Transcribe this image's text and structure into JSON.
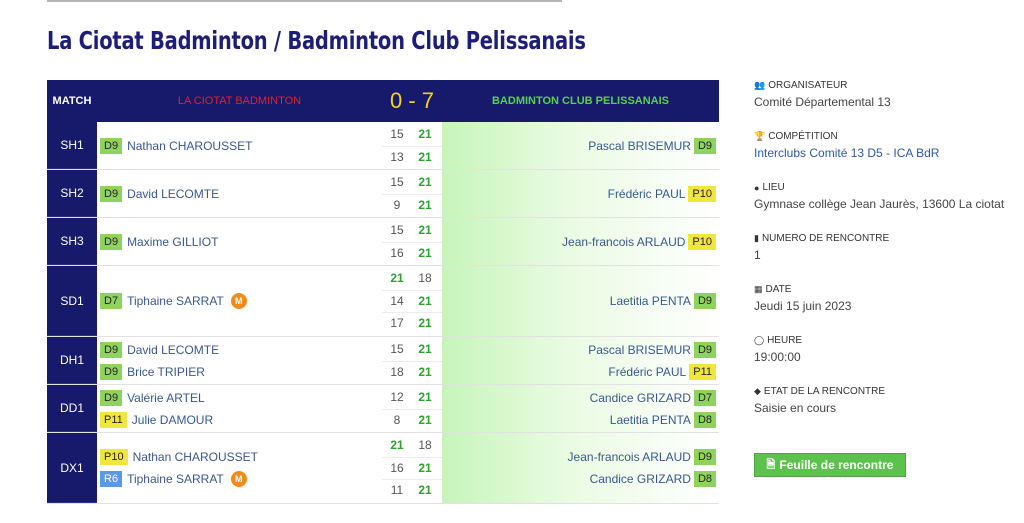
{
  "page": {
    "title": "La Ciotat Badminton / Badminton Club Pelissanais"
  },
  "table": {
    "match_header": "MATCH",
    "home_team": "LA CIOTAT BADMINTON",
    "score": "0 - 7",
    "away_team": "BADMINTON CLUB PELISSANAIS"
  },
  "matches": [
    {
      "label": "SH1",
      "home": [
        {
          "rank": "D9",
          "name": "Nathan CHAROUSSET"
        }
      ],
      "sets": [
        [
          "15",
          "21"
        ],
        [
          "13",
          "21"
        ]
      ],
      "away": [
        {
          "rank": "D9",
          "name": "Pascal BRISEMUR"
        }
      ]
    },
    {
      "label": "SH2",
      "home": [
        {
          "rank": "D9",
          "name": "David LECOMTE"
        }
      ],
      "sets": [
        [
          "15",
          "21"
        ],
        [
          "9",
          "21"
        ]
      ],
      "away": [
        {
          "rank": "P10",
          "name": "Frédéric PAUL"
        }
      ]
    },
    {
      "label": "SH3",
      "home": [
        {
          "rank": "D9",
          "name": "Maxime GILLIOT"
        }
      ],
      "sets": [
        [
          "15",
          "21"
        ],
        [
          "16",
          "21"
        ]
      ],
      "away": [
        {
          "rank": "P10",
          "name": "Jean-francois ARLAUD"
        }
      ]
    },
    {
      "label": "SD1",
      "home": [
        {
          "rank": "D7",
          "name": "Tiphaine SARRAT",
          "badge": "M"
        }
      ],
      "sets": [
        [
          "21",
          "18"
        ],
        [
          "14",
          "21"
        ],
        [
          "17",
          "21"
        ]
      ],
      "away": [
        {
          "rank": "D9",
          "name": "Laetitia PENTA"
        }
      ]
    },
    {
      "label": "DH1",
      "home": [
        {
          "rank": "D9",
          "name": "David LECOMTE"
        },
        {
          "rank": "D9",
          "name": "Brice TRIPIER"
        }
      ],
      "sets": [
        [
          "15",
          "21"
        ],
        [
          "18",
          "21"
        ]
      ],
      "away": [
        {
          "rank": "D9",
          "name": "Pascal BRISEMUR"
        },
        {
          "rank": "P11",
          "name": "Frédéric PAUL"
        }
      ]
    },
    {
      "label": "DD1",
      "home": [
        {
          "rank": "D9",
          "name": "Valérie ARTEL"
        },
        {
          "rank": "P11",
          "name": "Julie DAMOUR"
        }
      ],
      "sets": [
        [
          "12",
          "21"
        ],
        [
          "8",
          "21"
        ]
      ],
      "away": [
        {
          "rank": "D7",
          "name": "Candice GRIZARD"
        },
        {
          "rank": "D8",
          "name": "Laetitia PENTA"
        }
      ]
    },
    {
      "label": "DX1",
      "home": [
        {
          "rank": "P10",
          "name": "Nathan CHAROUSSET"
        },
        {
          "rank": "R6",
          "name": "Tiphaine SARRAT",
          "badge": "M"
        }
      ],
      "sets": [
        [
          "21",
          "18"
        ],
        [
          "16",
          "21"
        ],
        [
          "11",
          "21"
        ]
      ],
      "away": [
        {
          "rank": "D9",
          "name": "Jean-francois ARLAUD"
        },
        {
          "rank": "D8",
          "name": "Candice GRIZARD"
        }
      ]
    }
  ],
  "sidebar": {
    "organisateur": {
      "label": "ORGANISATEUR",
      "value": "Comité Départemental 13",
      "icon": "users-icon"
    },
    "competition": {
      "label": "COMPÉTITION",
      "value": "Interclubs Comité 13 D5 - ICA BdR",
      "icon": "trophy-icon"
    },
    "lieu": {
      "label": "LIEU",
      "value": "Gymnase collège Jean Jaurès, 13600 La ciotat",
      "icon": "map-marker-icon"
    },
    "numero": {
      "label": "NUMERO DE RENCONTRE",
      "value": "1",
      "icon": "bookmark-icon"
    },
    "date": {
      "label": "DATE",
      "value": "Jeudi 15 juin 2023",
      "icon": "calendar-icon"
    },
    "heure": {
      "label": "HEURE",
      "value": "19:00:00",
      "icon": "clock-icon"
    },
    "etat": {
      "label": "ETAT DE LA RENCONTRE",
      "value": "Saisie en cours",
      "icon": "tag-icon"
    }
  },
  "actions": {
    "sheet_label": "Feuille de rencontre",
    "sheet_icon": "file-pdf-icon"
  },
  "colors": {
    "header_bg": "#171a6a",
    "home_team": "#e0222a",
    "away_team": "#5ad14e",
    "score": "#f1d41f",
    "win_score": "#2ea12e",
    "rank_D": "#8fd35e",
    "rank_P": "#f0e640",
    "rank_R": "#5b98e6",
    "badge": "#f08c1e",
    "button": "#5cc14d"
  }
}
